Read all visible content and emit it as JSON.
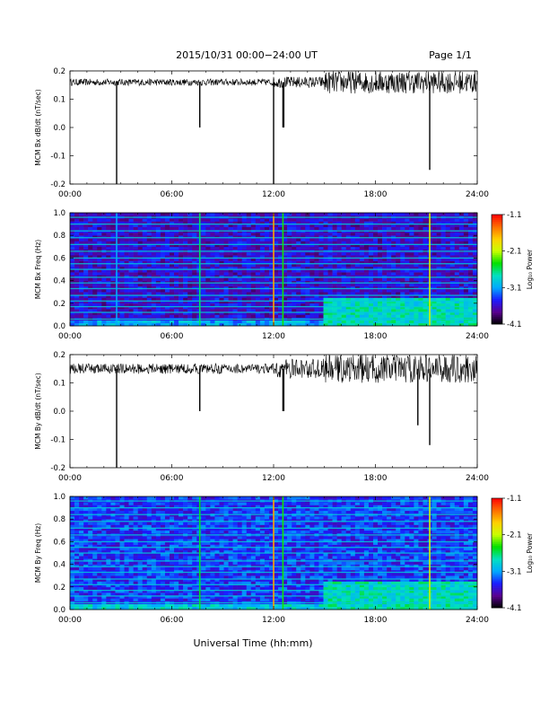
{
  "header": {
    "title": "2015/10/31   00:00−24:00 UT",
    "page": "Page 1/1"
  },
  "footer": {
    "xlabel": "Universal Time (hh:mm)"
  },
  "colorbar": {
    "label": "Log₁₀ Power",
    "ticks": [
      "-1.1",
      "-2.1",
      "-3.1",
      "-4.1"
    ],
    "colors": [
      "#000000",
      "#5a0090",
      "#1a1aff",
      "#00aaff",
      "#00e0c0",
      "#00e000",
      "#c8ff00",
      "#ffd000",
      "#ff7000",
      "#ff0000"
    ]
  },
  "chart_data": [
    {
      "type": "line",
      "ylabel": "MCM Bx dB/dt (nT/sec)",
      "xlim": [
        0,
        24
      ],
      "ylim": [
        -0.2,
        0.2
      ],
      "x_ticks": [
        "00:00",
        "06:00",
        "12:00",
        "18:00",
        "24:00"
      ],
      "y_ticks": [
        "0.2",
        "0.1",
        "0.0",
        "-0.1",
        "-0.2"
      ],
      "baseline": 0.16,
      "noise_envelope": [
        {
          "x0": 0,
          "x1": 12,
          "amp": 0.012
        },
        {
          "x0": 12,
          "x1": 15,
          "amp": 0.02
        },
        {
          "x0": 15,
          "x1": 24,
          "amp": 0.04
        }
      ],
      "spikes": [
        {
          "x": 2.75,
          "y": -0.2
        },
        {
          "x": 7.65,
          "y": 0.0
        },
        {
          "x": 12.0,
          "y": -0.2
        },
        {
          "x": 12.55,
          "y": 0.0
        },
        {
          "x": 12.6,
          "y": 0.0
        },
        {
          "x": 21.2,
          "y": -0.15
        }
      ]
    },
    {
      "type": "heatmap",
      "ylabel": "MCM Bx Freq (Hz)",
      "xlim": [
        0,
        24
      ],
      "ylim": [
        0,
        1.0
      ],
      "x_ticks": [
        "00:00",
        "06:00",
        "12:00",
        "18:00",
        "24:00"
      ],
      "y_ticks": [
        "1.0",
        "0.8",
        "0.6",
        "0.4",
        "0.2",
        "0.0"
      ],
      "clim": [
        -4.1,
        -1.1
      ],
      "background_level": -3.6,
      "line_frequencies": [
        0.06,
        0.12,
        0.17,
        0.22,
        0.27,
        0.33,
        0.38,
        0.43,
        0.5,
        0.55,
        0.6,
        0.66,
        0.72,
        0.78,
        0.84,
        0.9,
        0.96
      ],
      "vertical_events": [
        {
          "x": 2.75,
          "level": -3.1
        },
        {
          "x": 7.65,
          "level": -2.6
        },
        {
          "x": 12.0,
          "level": -1.6
        },
        {
          "x": 12.55,
          "level": -2.4
        },
        {
          "x": 21.2,
          "level": -2.0
        }
      ],
      "active_region": {
        "x0": 15,
        "x1": 24,
        "f_max": 0.25,
        "level": -2.8
      }
    },
    {
      "type": "line",
      "ylabel": "MCM By dB/dt (nT/sec)",
      "xlim": [
        0,
        24
      ],
      "ylim": [
        -0.2,
        0.2
      ],
      "x_ticks": [
        "00:00",
        "06:00",
        "12:00",
        "18:00",
        "24:00"
      ],
      "y_ticks": [
        "0.2",
        "0.1",
        "0.0",
        "-0.1",
        "-0.2"
      ],
      "baseline": 0.15,
      "noise_envelope": [
        {
          "x0": 0,
          "x1": 12,
          "amp": 0.018
        },
        {
          "x0": 12,
          "x1": 15,
          "amp": 0.035
        },
        {
          "x0": 15,
          "x1": 24,
          "amp": 0.05
        }
      ],
      "spikes": [
        {
          "x": 2.75,
          "y": -0.2
        },
        {
          "x": 7.65,
          "y": 0.0
        },
        {
          "x": 12.55,
          "y": 0.0
        },
        {
          "x": 12.6,
          "y": 0.0
        },
        {
          "x": 20.5,
          "y": -0.05
        },
        {
          "x": 21.2,
          "y": -0.12
        }
      ]
    },
    {
      "type": "heatmap",
      "ylabel": "MCM By Freq (Hz)",
      "xlim": [
        0,
        24
      ],
      "ylim": [
        0,
        1.0
      ],
      "x_ticks": [
        "00:00",
        "06:00",
        "12:00",
        "18:00",
        "24:00"
      ],
      "y_ticks": [
        "1.0",
        "0.8",
        "0.6",
        "0.4",
        "0.2",
        "0.0"
      ],
      "clim": [
        -4.1,
        -1.1
      ],
      "background_level": -3.4,
      "line_frequencies": [
        0.06,
        0.12,
        0.17,
        0.22,
        0.27,
        0.33,
        0.38,
        0.43,
        0.5,
        0.55,
        0.6,
        0.66,
        0.72,
        0.78,
        0.84,
        0.9,
        0.96
      ],
      "vertical_events": [
        {
          "x": 7.65,
          "level": -2.5
        },
        {
          "x": 12.0,
          "level": -1.6
        },
        {
          "x": 12.55,
          "level": -2.4
        },
        {
          "x": 21.2,
          "level": -2.0
        }
      ],
      "active_region": {
        "x0": 15,
        "x1": 24,
        "f_max": 0.25,
        "level": -2.8
      }
    }
  ]
}
